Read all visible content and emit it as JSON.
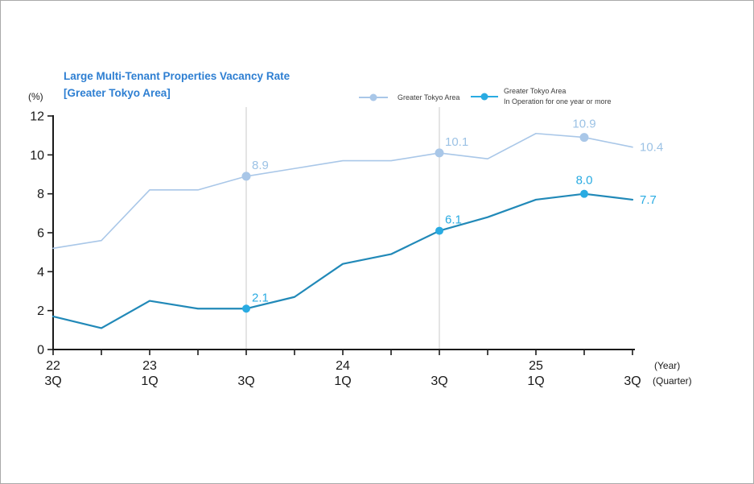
{
  "title": {
    "line1": "Large Multi-Tenant Properties Vacancy Rate",
    "line2": "[Greater Tokyo Area]",
    "color": "#2e7fd2"
  },
  "legend": {
    "items": [
      {
        "lines": [
          "Greater Tokyo Area"
        ]
      },
      {
        "lines": [
          "Greater Tokyo Area",
          "In Operation for one year or more"
        ]
      }
    ]
  },
  "axes": {
    "y_unit": "(%)",
    "x_suffix_year": "(Year)",
    "x_suffix_quarter": "(Quarter)"
  },
  "chart_data": {
    "type": "line",
    "title": "Large Multi-Tenant Properties Vacancy Rate [Greater Tokyo Area]",
    "ylabel": "(%)",
    "ylim": [
      0,
      12
    ],
    "ytick_step": 2,
    "grid": "vertical gridlines at 23 3Q and 24 3Q only",
    "legend_position": "top",
    "categories": [
      "22 3Q",
      "22 4Q",
      "23 1Q",
      "23 2Q",
      "23 3Q",
      "23 4Q",
      "24 1Q",
      "24 2Q",
      "24 3Q",
      "24 4Q",
      "25 1Q",
      "25 2Q",
      "25 3Q"
    ],
    "x_axis": {
      "year_labels": {
        "0": "22",
        "2": "23",
        "6": "24",
        "10": "25"
      },
      "quarter_labels": {
        "0": "3Q",
        "2": "1Q",
        "4": "3Q",
        "6": "1Q",
        "8": "3Q",
        "10": "1Q",
        "12": "3Q"
      }
    },
    "gridline_indices": [
      4,
      8
    ],
    "gridline_color": "#c9c9c9",
    "axis_color": "#1a1a1a",
    "series": [
      {
        "name": "Greater Tokyo Area",
        "color": "#a9c7e8",
        "marker_color": "#a9c7e8",
        "label_color": "#9cc2e5",
        "values": [
          5.2,
          5.6,
          8.2,
          8.2,
          8.9,
          9.3,
          9.7,
          9.7,
          10.1,
          9.8,
          11.1,
          10.9,
          10.4
        ],
        "labeled_points": [
          {
            "index": 4,
            "text": "8.9",
            "placement": "upper-right",
            "marker": true
          },
          {
            "index": 8,
            "text": "10.1",
            "placement": "upper-right",
            "marker": true
          },
          {
            "index": 11,
            "text": "10.9",
            "placement": "above",
            "marker": true
          },
          {
            "index": 12,
            "text": "10.4",
            "placement": "right",
            "marker": false
          }
        ]
      },
      {
        "name": "Greater Tokyo Area In Operation for one year or more",
        "color": "#2189b8",
        "marker_color": "#29abe2",
        "label_color": "#29abe2",
        "values": [
          1.7,
          1.1,
          2.5,
          2.1,
          2.1,
          2.7,
          4.4,
          4.9,
          6.1,
          6.8,
          7.7,
          8.0,
          7.7
        ],
        "labeled_points": [
          {
            "index": 4,
            "text": "2.1",
            "placement": "upper-right",
            "marker": true
          },
          {
            "index": 8,
            "text": "6.1",
            "placement": "upper-right",
            "marker": true
          },
          {
            "index": 11,
            "text": "8.0",
            "placement": "above",
            "marker": true
          },
          {
            "index": 12,
            "text": "7.7",
            "placement": "right",
            "marker": false
          }
        ]
      }
    ]
  }
}
